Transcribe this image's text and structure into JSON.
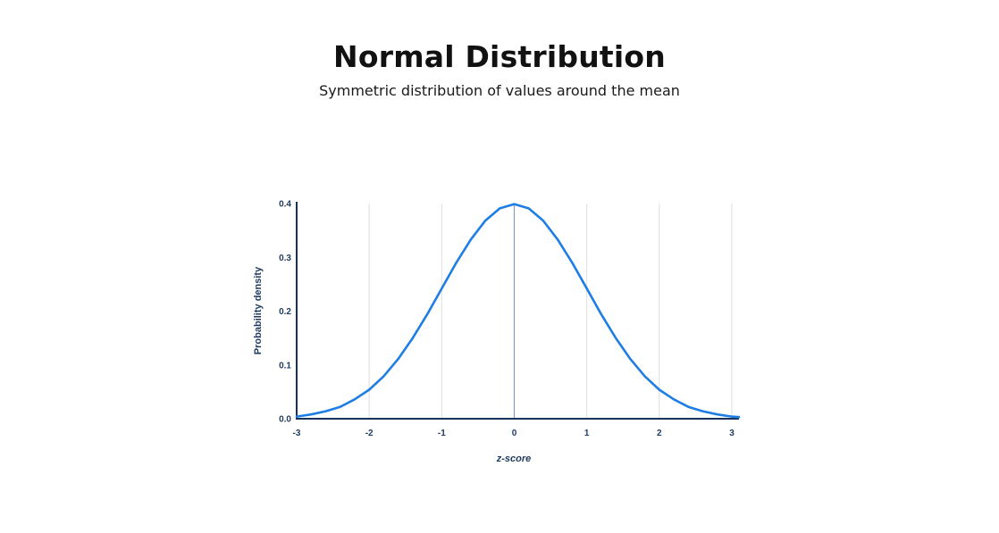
{
  "title": "Normal Distribution",
  "subtitle": "Symmetric distribution of values around the mean",
  "chart_data": {
    "type": "line",
    "title": "Normal Distribution",
    "subtitle": "Symmetric distribution of values around the mean",
    "xlabel": "z-score",
    "ylabel": "Probability density",
    "xlim": [
      -3,
      3.1
    ],
    "ylim": [
      0,
      0.4
    ],
    "x_ticks": [
      "-3",
      "-2",
      "-1",
      "0",
      "1",
      "2",
      "3"
    ],
    "y_ticks": [
      "0.0",
      "0.1",
      "0.2",
      "0.3",
      "0.4"
    ],
    "x_tick_values": [
      -3,
      -2,
      -1,
      0,
      1,
      2,
      3
    ],
    "y_tick_values": [
      0,
      0.1,
      0.2,
      0.3,
      0.4
    ],
    "mean_line": 0,
    "grid": "vertical",
    "series": [
      {
        "color": "#1e7ee4",
        "x": [
          -3.0,
          -2.8,
          -2.6,
          -2.4,
          -2.2,
          -2.0,
          -1.8,
          -1.6,
          -1.4,
          -1.2,
          -1.0,
          -0.8,
          -0.6,
          -0.4,
          -0.2,
          0.0,
          0.2,
          0.4,
          0.6,
          0.8,
          1.0,
          1.2,
          1.4,
          1.6,
          1.8,
          2.0,
          2.2,
          2.4,
          2.6,
          2.8,
          3.0,
          3.1
        ],
        "y": [
          0.004,
          0.008,
          0.014,
          0.022,
          0.036,
          0.054,
          0.079,
          0.111,
          0.15,
          0.194,
          0.242,
          0.29,
          0.333,
          0.368,
          0.391,
          0.399,
          0.391,
          0.368,
          0.333,
          0.29,
          0.242,
          0.194,
          0.15,
          0.111,
          0.079,
          0.054,
          0.036,
          0.022,
          0.014,
          0.008,
          0.004,
          0.003
        ]
      }
    ],
    "colors": {
      "curve": "#1e7ee4",
      "axis": "#16325c",
      "grid": "#dedede",
      "mean_line": "#8a9bb8",
      "text": "#1f3a5f"
    }
  }
}
